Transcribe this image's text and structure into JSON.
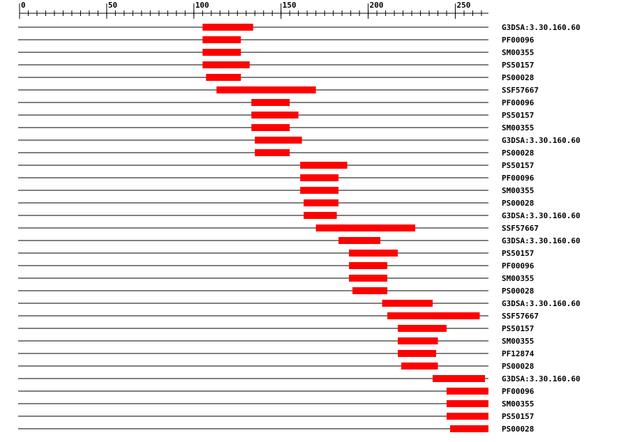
{
  "chart_data": {
    "type": "range_bar",
    "color": "#ff0000",
    "xlim": [
      0,
      269
    ],
    "xticks": [
      0,
      50,
      100,
      150,
      200,
      250
    ],
    "minor_tick_interval": 5,
    "rows": [
      {
        "name": "G3DSA:3.30.160.60",
        "start": 105,
        "end": 134
      },
      {
        "name": "PF00096",
        "start": 105,
        "end": 127
      },
      {
        "name": "SM00355",
        "start": 105,
        "end": 127
      },
      {
        "name": "PS50157",
        "start": 105,
        "end": 132
      },
      {
        "name": "PS00028",
        "start": 107,
        "end": 127
      },
      {
        "name": "SSF57667",
        "start": 113,
        "end": 170
      },
      {
        "name": "PF00096",
        "start": 133,
        "end": 155
      },
      {
        "name": "PS50157",
        "start": 133,
        "end": 160
      },
      {
        "name": "SM00355",
        "start": 133,
        "end": 155
      },
      {
        "name": "G3DSA:3.30.160.60",
        "start": 135,
        "end": 162
      },
      {
        "name": "PS00028",
        "start": 135,
        "end": 155
      },
      {
        "name": "PS50157",
        "start": 161,
        "end": 188
      },
      {
        "name": "PF00096",
        "start": 161,
        "end": 183
      },
      {
        "name": "SM00355",
        "start": 161,
        "end": 183
      },
      {
        "name": "PS00028",
        "start": 163,
        "end": 183
      },
      {
        "name": "G3DSA:3.30.160.60",
        "start": 163,
        "end": 182
      },
      {
        "name": "SSF57667",
        "start": 170,
        "end": 227
      },
      {
        "name": "G3DSA:3.30.160.60",
        "start": 183,
        "end": 207
      },
      {
        "name": "PS50157",
        "start": 189,
        "end": 217
      },
      {
        "name": "PF00096",
        "start": 189,
        "end": 211
      },
      {
        "name": "SM00355",
        "start": 189,
        "end": 211
      },
      {
        "name": "PS00028",
        "start": 191,
        "end": 211
      },
      {
        "name": "G3DSA:3.30.160.60",
        "start": 208,
        "end": 237
      },
      {
        "name": "SSF57667",
        "start": 211,
        "end": 264
      },
      {
        "name": "PS50157",
        "start": 217,
        "end": 245
      },
      {
        "name": "SM00355",
        "start": 217,
        "end": 240
      },
      {
        "name": "PF12874",
        "start": 217,
        "end": 239
      },
      {
        "name": "PS00028",
        "start": 219,
        "end": 240
      },
      {
        "name": "G3DSA:3.30.160.60",
        "start": 237,
        "end": 267
      },
      {
        "name": "PF00096",
        "start": 245,
        "end": 269
      },
      {
        "name": "SM00355",
        "start": 245,
        "end": 269
      },
      {
        "name": "PS50157",
        "start": 245,
        "end": 269
      },
      {
        "name": "PS00028",
        "start": 247,
        "end": 269
      }
    ]
  }
}
